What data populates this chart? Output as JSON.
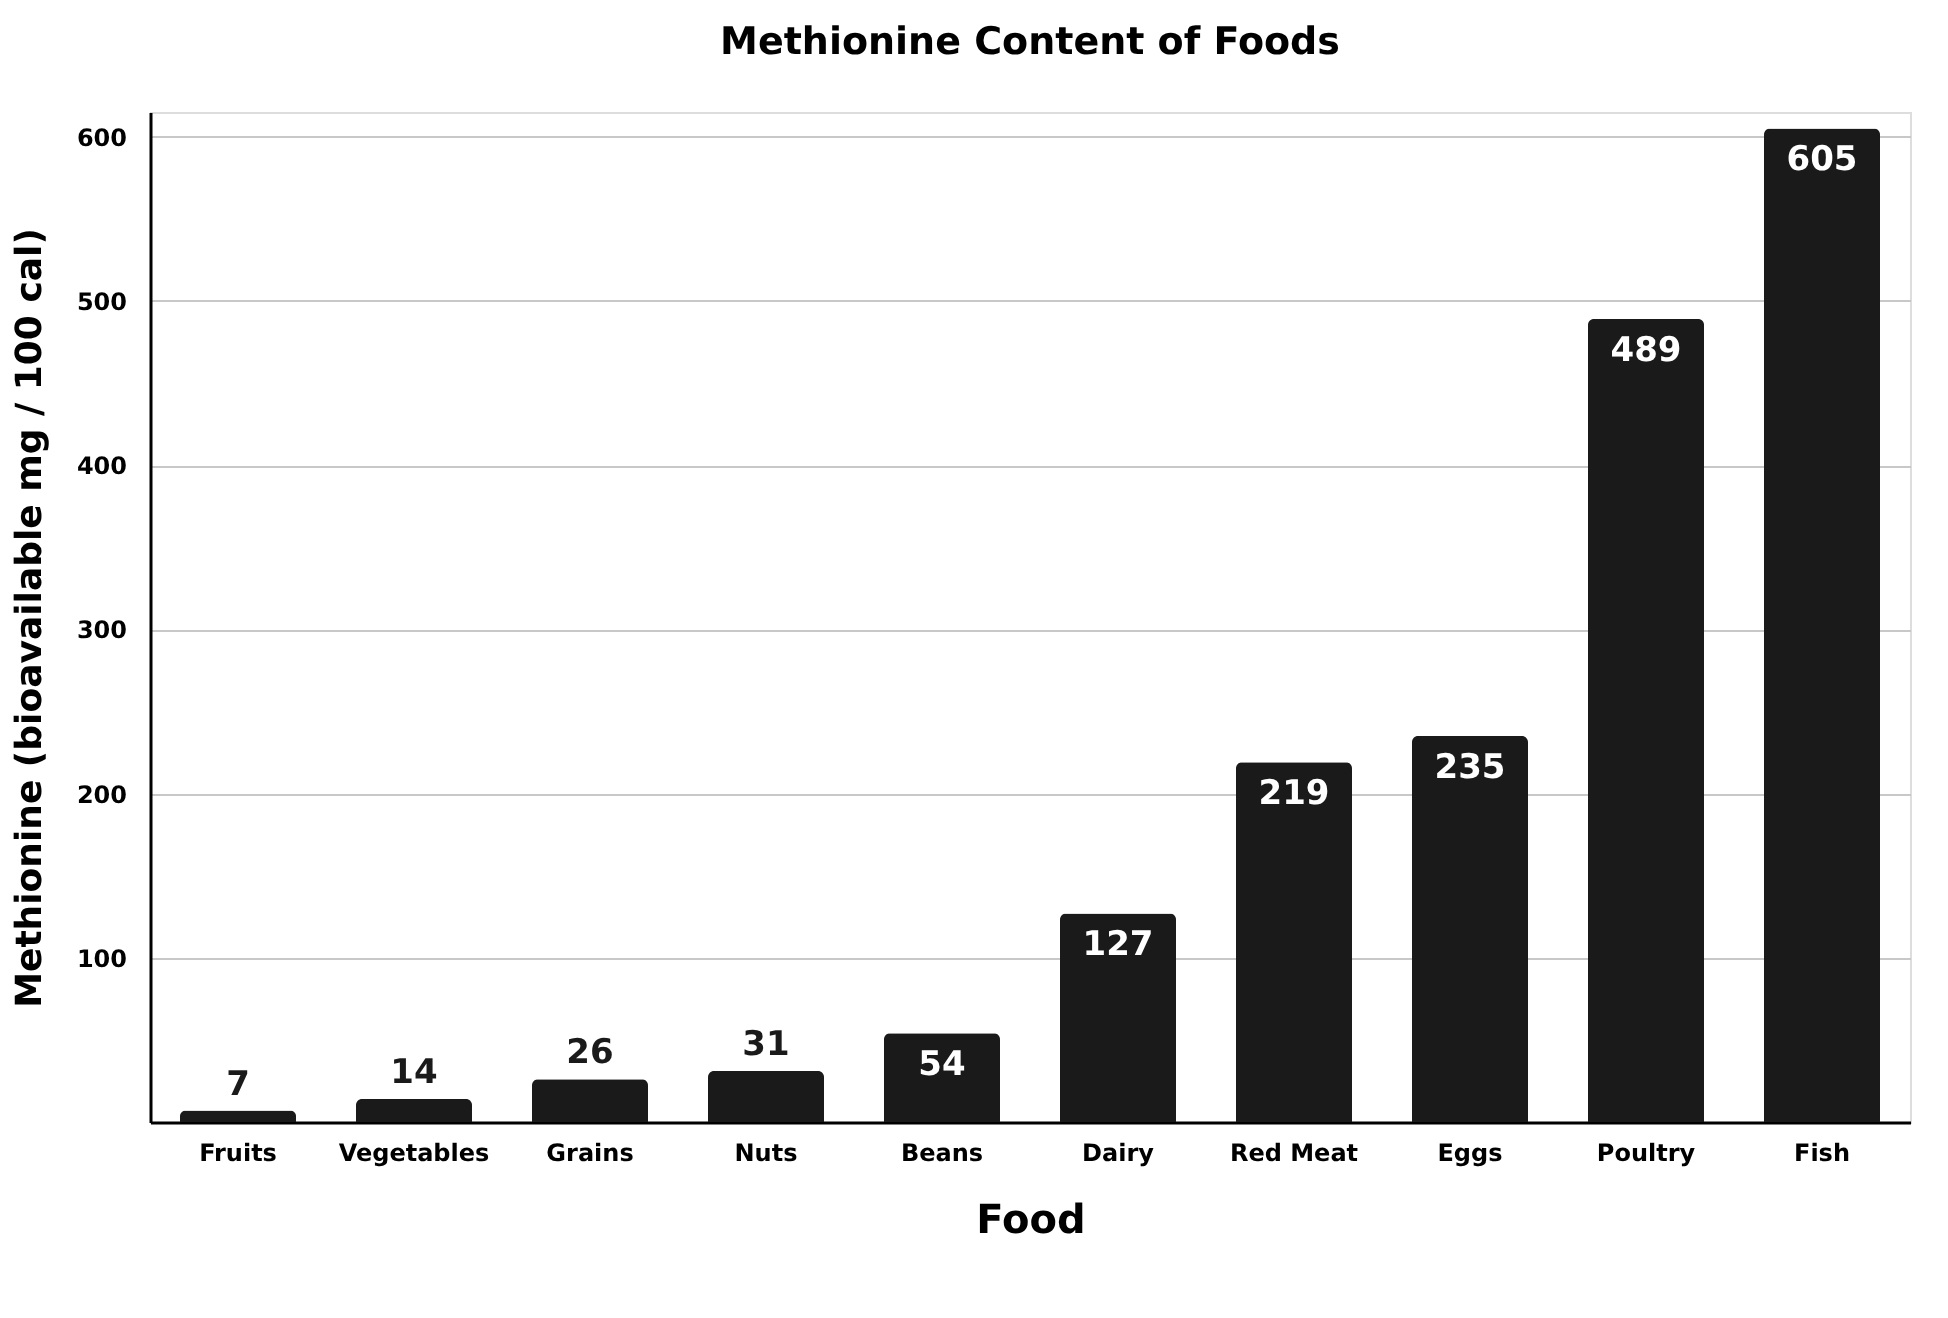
{
  "chart_data": {
    "type": "bar",
    "title": "Methionine Content of Foods",
    "xlabel": "Food",
    "ylabel": "Methionine (bioavailable mg / 100 cal)",
    "categories": [
      "Fruits",
      "Vegetables",
      "Grains",
      "Nuts",
      "Beans",
      "Dairy",
      "Red Meat",
      "Eggs",
      "Poultry",
      "Fish"
    ],
    "values": [
      7,
      14,
      26,
      31,
      54,
      127,
      219,
      235,
      489,
      605
    ],
    "color": "#1a1a1a",
    "ylim": [
      0,
      615
    ],
    "yticks": [
      100,
      200,
      300,
      400,
      500,
      600
    ],
    "grid": "y",
    "data_labels": true
  }
}
